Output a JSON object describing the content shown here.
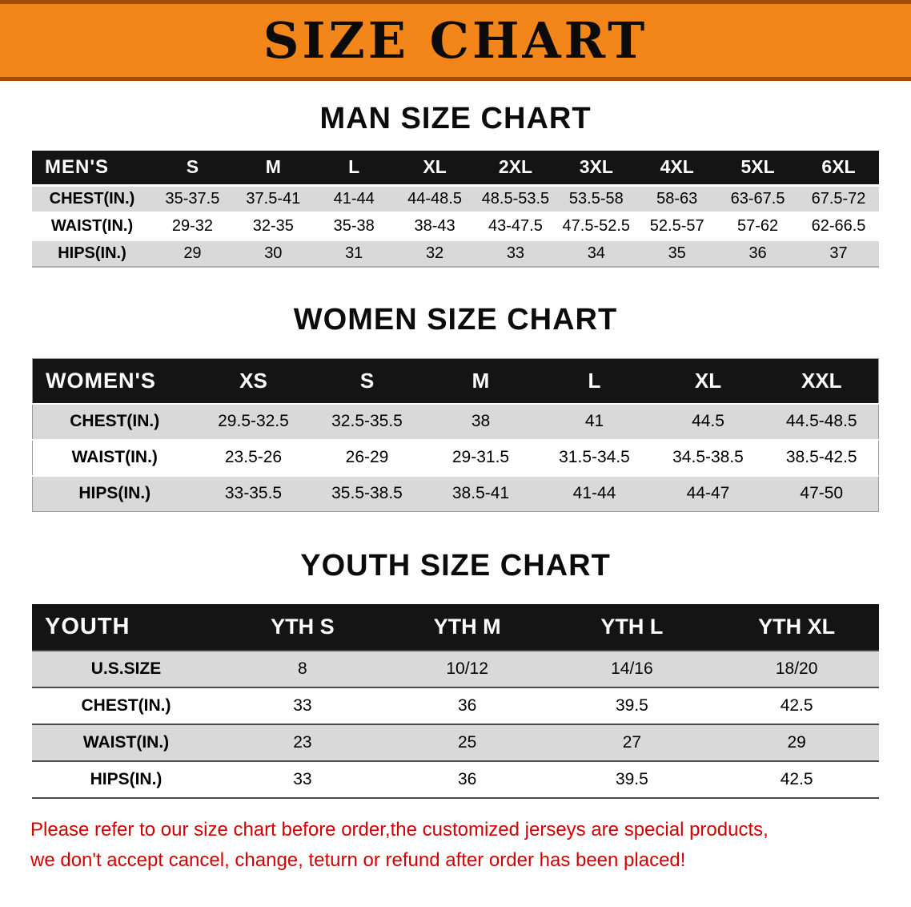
{
  "banner": {
    "title": "SIZE CHART"
  },
  "colors": {
    "banner_bg": "#F2861B",
    "banner_edge": "#A54D06",
    "header_bg": "#141414",
    "stripe": "#D9D9D9",
    "footer_red": "#D40000"
  },
  "sections": [
    {
      "id": "men",
      "heading": "MAN SIZE CHART",
      "corner_label": "MEN'S",
      "columns": [
        "S",
        "M",
        "L",
        "XL",
        "2XL",
        "3XL",
        "4XL",
        "5XL",
        "6XL"
      ],
      "rows": [
        {
          "label": "CHEST(IN.)",
          "values": [
            "35-37.5",
            "37.5-41",
            "41-44",
            "44-48.5",
            "48.5-53.5",
            "53.5-58",
            "58-63",
            "63-67.5",
            "67.5-72"
          ]
        },
        {
          "label": "WAIST(IN.)",
          "values": [
            "29-32",
            "32-35",
            "35-38",
            "38-43",
            "43-47.5",
            "47.5-52.5",
            "52.5-57",
            "57-62",
            "62-66.5"
          ]
        },
        {
          "label": "HIPS(IN.)",
          "values": [
            "29",
            "30",
            "31",
            "32",
            "33",
            "34",
            "35",
            "36",
            "37"
          ]
        }
      ]
    },
    {
      "id": "women",
      "heading": "WOMEN SIZE CHART",
      "corner_label": "WOMEN'S",
      "columns": [
        "XS",
        "S",
        "M",
        "L",
        "XL",
        "XXL"
      ],
      "rows": [
        {
          "label": "CHEST(IN.)",
          "values": [
            "29.5-32.5",
            "32.5-35.5",
            "38",
            "41",
            "44.5",
            "44.5-48.5"
          ]
        },
        {
          "label": "WAIST(IN.)",
          "values": [
            "23.5-26",
            "26-29",
            "29-31.5",
            "31.5-34.5",
            "34.5-38.5",
            "38.5-42.5"
          ]
        },
        {
          "label": "HIPS(IN.)",
          "values": [
            "33-35.5",
            "35.5-38.5",
            "38.5-41",
            "41-44",
            "44-47",
            "47-50"
          ]
        }
      ]
    },
    {
      "id": "youth",
      "heading": "YOUTH SIZE CHART",
      "corner_label": "YOUTH",
      "columns": [
        "YTH S",
        "YTH M",
        "YTH L",
        "YTH XL"
      ],
      "rows": [
        {
          "label": "U.S.SIZE",
          "values": [
            "8",
            "10/12",
            "14/16",
            "18/20"
          ]
        },
        {
          "label": "CHEST(IN.)",
          "values": [
            "33",
            "36",
            "39.5",
            "42.5"
          ]
        },
        {
          "label": "WAIST(IN.)",
          "values": [
            "23",
            "25",
            "27",
            "29"
          ]
        },
        {
          "label": "HIPS(IN.)",
          "values": [
            "33",
            "36",
            "39.5",
            "42.5"
          ]
        }
      ]
    }
  ],
  "footer": {
    "line1": "Please refer to our size chart before order,the customized jerseys are special products,",
    "line2": "we don't accept cancel, change, teturn or refund after order has been placed!"
  }
}
